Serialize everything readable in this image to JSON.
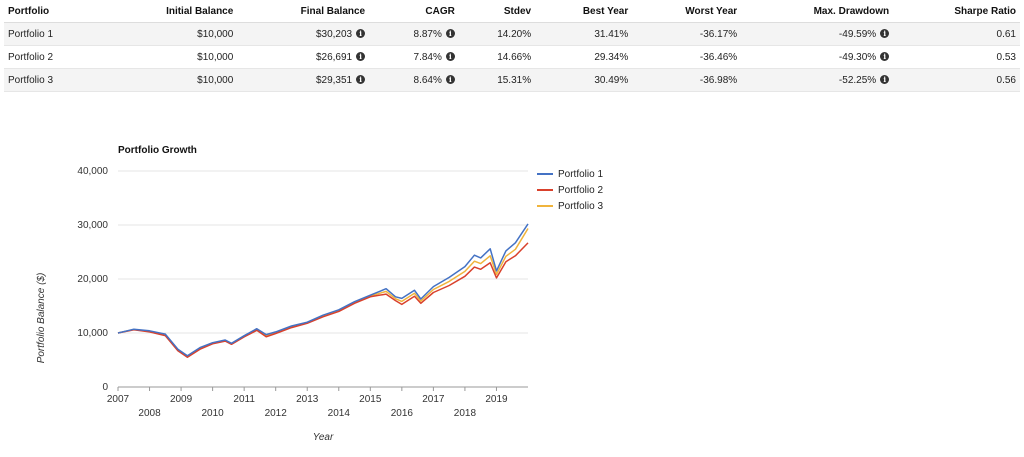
{
  "table": {
    "headers": [
      "Portfolio",
      "Initial Balance",
      "Final Balance",
      "CAGR",
      "Stdev",
      "Best Year",
      "Worst Year",
      "Max. Drawdown",
      "Sharpe Ratio"
    ],
    "rows": [
      {
        "portfolio": "Portfolio 1",
        "initial": "$10,000",
        "final": "$30,203",
        "cagr": "8.87%",
        "stdev": "14.20%",
        "best": "31.41%",
        "worst": "-36.17%",
        "drawdown": "-49.59%",
        "sharpe": "0.61"
      },
      {
        "portfolio": "Portfolio 2",
        "initial": "$10,000",
        "final": "$26,691",
        "cagr": "7.84%",
        "stdev": "14.66%",
        "best": "29.34%",
        "worst": "-36.46%",
        "drawdown": "-49.30%",
        "sharpe": "0.53"
      },
      {
        "portfolio": "Portfolio 3",
        "initial": "$10,000",
        "final": "$29,351",
        "cagr": "8.64%",
        "stdev": "15.31%",
        "best": "30.49%",
        "worst": "-36.98%",
        "drawdown": "-52.25%",
        "sharpe": "0.56"
      }
    ],
    "info_glyph": "i"
  },
  "chart_data": {
    "type": "line",
    "title": "Portfolio Growth",
    "xlabel": "Year",
    "ylabel": "Portfolio Balance ($)",
    "ylim": [
      0,
      40000
    ],
    "xlim": [
      2007,
      2020
    ],
    "yticks": [
      "0",
      "10,000",
      "20,000",
      "30,000",
      "40,000"
    ],
    "xticks": [
      "2007",
      "2008",
      "2009",
      "2010",
      "2011",
      "2012",
      "2013",
      "2014",
      "2015",
      "2016",
      "2017",
      "2018",
      "2019"
    ],
    "legend_position": "top-right",
    "colors": [
      "#4472c4",
      "#d9412c",
      "#f0b43c"
    ],
    "series": [
      {
        "name": "Portfolio 1",
        "points": [
          [
            2007,
            10000
          ],
          [
            2007.5,
            10700
          ],
          [
            2008,
            10400
          ],
          [
            2008.5,
            9800
          ],
          [
            2008.9,
            7000
          ],
          [
            2009.2,
            5800
          ],
          [
            2009.6,
            7300
          ],
          [
            2010,
            8200
          ],
          [
            2010.4,
            8700
          ],
          [
            2010.6,
            8100
          ],
          [
            2011,
            9500
          ],
          [
            2011.4,
            10800
          ],
          [
            2011.7,
            9700
          ],
          [
            2012,
            10200
          ],
          [
            2012.5,
            11300
          ],
          [
            2013,
            12000
          ],
          [
            2013.5,
            13300
          ],
          [
            2014,
            14300
          ],
          [
            2014.5,
            15800
          ],
          [
            2015,
            17000
          ],
          [
            2015.5,
            18200
          ],
          [
            2015.8,
            16700
          ],
          [
            2016,
            16400
          ],
          [
            2016.4,
            17900
          ],
          [
            2016.6,
            16300
          ],
          [
            2017,
            18600
          ],
          [
            2017.5,
            20300
          ],
          [
            2018,
            22300
          ],
          [
            2018.3,
            24400
          ],
          [
            2018.5,
            23900
          ],
          [
            2018.8,
            25600
          ],
          [
            2019,
            21500
          ],
          [
            2019.3,
            25200
          ],
          [
            2019.6,
            26700
          ],
          [
            2020,
            30203
          ]
        ]
      },
      {
        "name": "Portfolio 2",
        "points": [
          [
            2007,
            10000
          ],
          [
            2007.5,
            10600
          ],
          [
            2008,
            10200
          ],
          [
            2008.5,
            9500
          ],
          [
            2008.9,
            6700
          ],
          [
            2009.2,
            5500
          ],
          [
            2009.6,
            7000
          ],
          [
            2010,
            8000
          ],
          [
            2010.4,
            8500
          ],
          [
            2010.6,
            7900
          ],
          [
            2011,
            9300
          ],
          [
            2011.4,
            10500
          ],
          [
            2011.7,
            9300
          ],
          [
            2012,
            9900
          ],
          [
            2012.5,
            11000
          ],
          [
            2013,
            11800
          ],
          [
            2013.5,
            13000
          ],
          [
            2014,
            14000
          ],
          [
            2014.5,
            15500
          ],
          [
            2015,
            16700
          ],
          [
            2015.5,
            17200
          ],
          [
            2015.8,
            16000
          ],
          [
            2016,
            15300
          ],
          [
            2016.4,
            16800
          ],
          [
            2016.6,
            15500
          ],
          [
            2017,
            17500
          ],
          [
            2017.5,
            18800
          ],
          [
            2018,
            20500
          ],
          [
            2018.3,
            22200
          ],
          [
            2018.5,
            21800
          ],
          [
            2018.8,
            23000
          ],
          [
            2019,
            20200
          ],
          [
            2019.3,
            23200
          ],
          [
            2019.6,
            24300
          ],
          [
            2020,
            26691
          ]
        ]
      },
      {
        "name": "Portfolio 3",
        "points": [
          [
            2007,
            10000
          ],
          [
            2007.5,
            10650
          ],
          [
            2008,
            10300
          ],
          [
            2008.5,
            9650
          ],
          [
            2008.9,
            6850
          ],
          [
            2009.2,
            5650
          ],
          [
            2009.6,
            7150
          ],
          [
            2010,
            8100
          ],
          [
            2010.4,
            8600
          ],
          [
            2010.6,
            8000
          ],
          [
            2011,
            9400
          ],
          [
            2011.4,
            10650
          ],
          [
            2011.7,
            9500
          ],
          [
            2012,
            10050
          ],
          [
            2012.5,
            11150
          ],
          [
            2013,
            11900
          ],
          [
            2013.5,
            13150
          ],
          [
            2014,
            14150
          ],
          [
            2014.5,
            15650
          ],
          [
            2015,
            16850
          ],
          [
            2015.5,
            17700
          ],
          [
            2015.8,
            16350
          ],
          [
            2016,
            15850
          ],
          [
            2016.4,
            17350
          ],
          [
            2016.6,
            15900
          ],
          [
            2017,
            18050
          ],
          [
            2017.5,
            19550
          ],
          [
            2018,
            21400
          ],
          [
            2018.3,
            23300
          ],
          [
            2018.5,
            22850
          ],
          [
            2018.8,
            24300
          ],
          [
            2019,
            20850
          ],
          [
            2019.3,
            24200
          ],
          [
            2019.6,
            25500
          ],
          [
            2020,
            29351
          ]
        ]
      }
    ]
  }
}
